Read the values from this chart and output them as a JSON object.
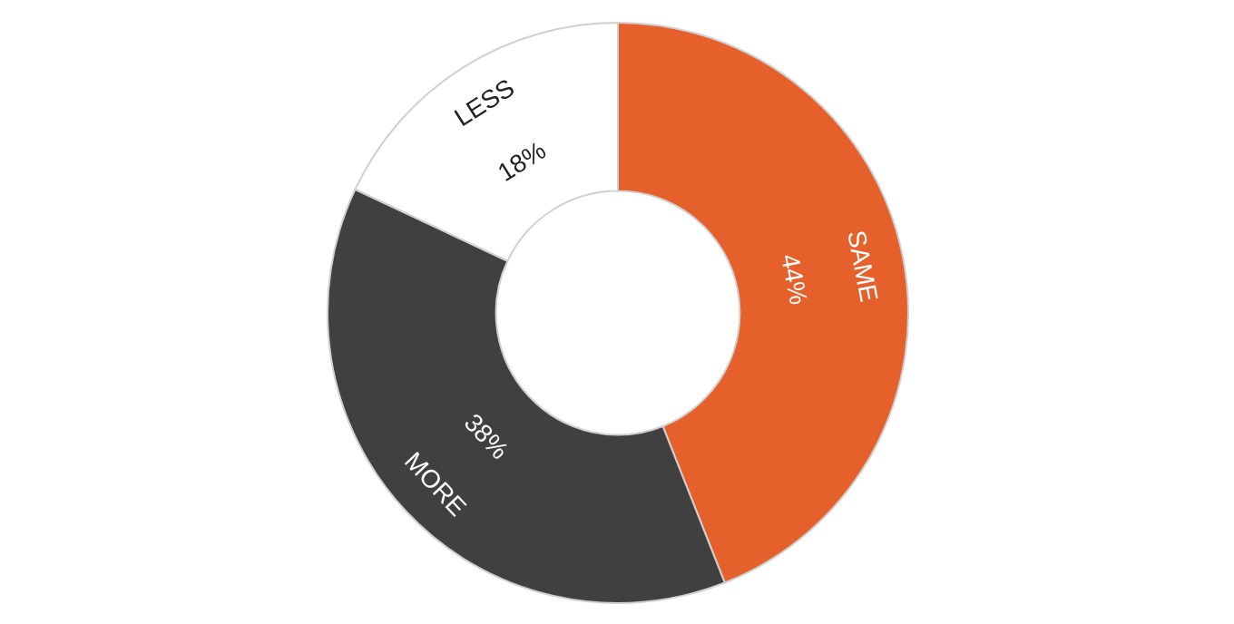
{
  "chart_data": {
    "type": "donut",
    "categories": [
      "SAME",
      "MORE",
      "LESS"
    ],
    "values": [
      44,
      38,
      18
    ],
    "colors": [
      "#e5602a",
      "#404040",
      "#ffffff"
    ],
    "value_labels": [
      "44%",
      "38%",
      "18%"
    ]
  }
}
